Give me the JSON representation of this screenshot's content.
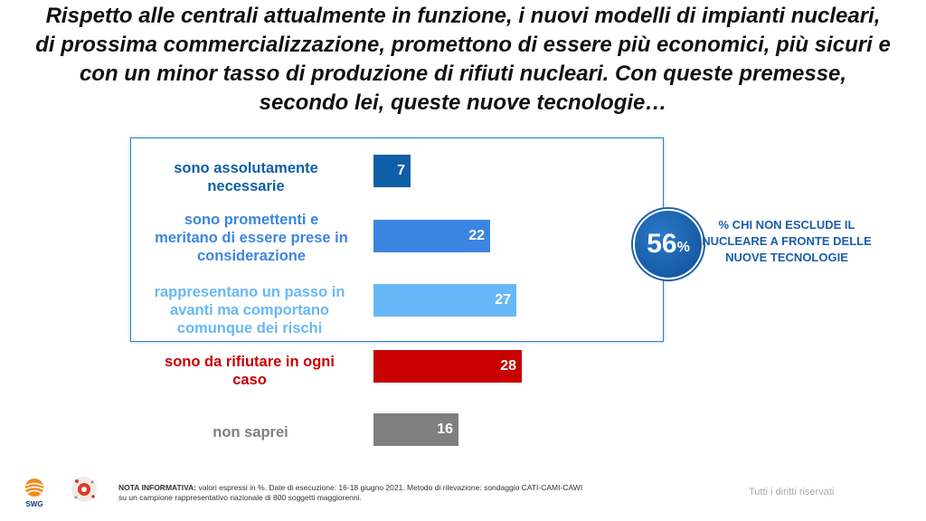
{
  "title": {
    "lines": [
      "Rispetto alle centrali attualmente in funzione, i nuovi modelli di impianti nucleari,",
      "di prossima commercializzazione, promettono di essere più economici, più sicuri e",
      "con un minor tasso di produzione di rifiuti nucleari. Con queste premesse,",
      "secondo lei, queste nuove tecnologie…"
    ]
  },
  "chart_data": {
    "type": "bar",
    "orientation": "horizontal",
    "categories": [
      "sono assolutamente necessarie",
      "sono promettenti e meritano di essere prese in considerazione",
      "rappresentano un passo in avanti ma comportano comunque dei rischi",
      "sono da rifiutare in ogni caso",
      "non saprei"
    ],
    "values": [
      7,
      22,
      27,
      28,
      16
    ],
    "colors": [
      "#0f5fa6",
      "#3c85e0",
      "#67b8f7",
      "#c80000",
      "#7f7f7f"
    ],
    "label_colors": [
      "#0f5fa6",
      "#3c85e0",
      "#67b8f7",
      "#c80000",
      "#7f7f7f"
    ],
    "xlim": [
      0,
      60
    ]
  },
  "labels": {
    "cat1": [
      "sono assolutamente",
      "necessarie"
    ],
    "cat2": [
      "sono promettenti e",
      "meritano di essere prese in",
      "considerazione"
    ],
    "cat3": [
      "rappresentano un passo in",
      "avanti ma comportano",
      "comunque dei rischi"
    ],
    "cat4": [
      "sono da rifiutare in ogni",
      "caso"
    ],
    "cat5": [
      "non saprei"
    ]
  },
  "summary": {
    "value": "56",
    "unit": "%",
    "caption_lines": [
      "% CHI NON ESCLUDE IL",
      "NUCLEARE A FRONTE DELLE",
      "NUOVE TECNOLOGIE"
    ]
  },
  "footer": {
    "note_bold": "NOTA INFORMATIVA:",
    "note_line1": " valori espressi in %. Date di esecuzione: 16-18 giugno 2021. Metodo di rilevazione: sondaggio CATI-CAMI-CAWI",
    "note_line2": "su un campione rappresentativo nazionale di 800 soggetti maggiorenni.",
    "rights": "Tutti i diritti riservati",
    "logo_text": "SWG"
  }
}
